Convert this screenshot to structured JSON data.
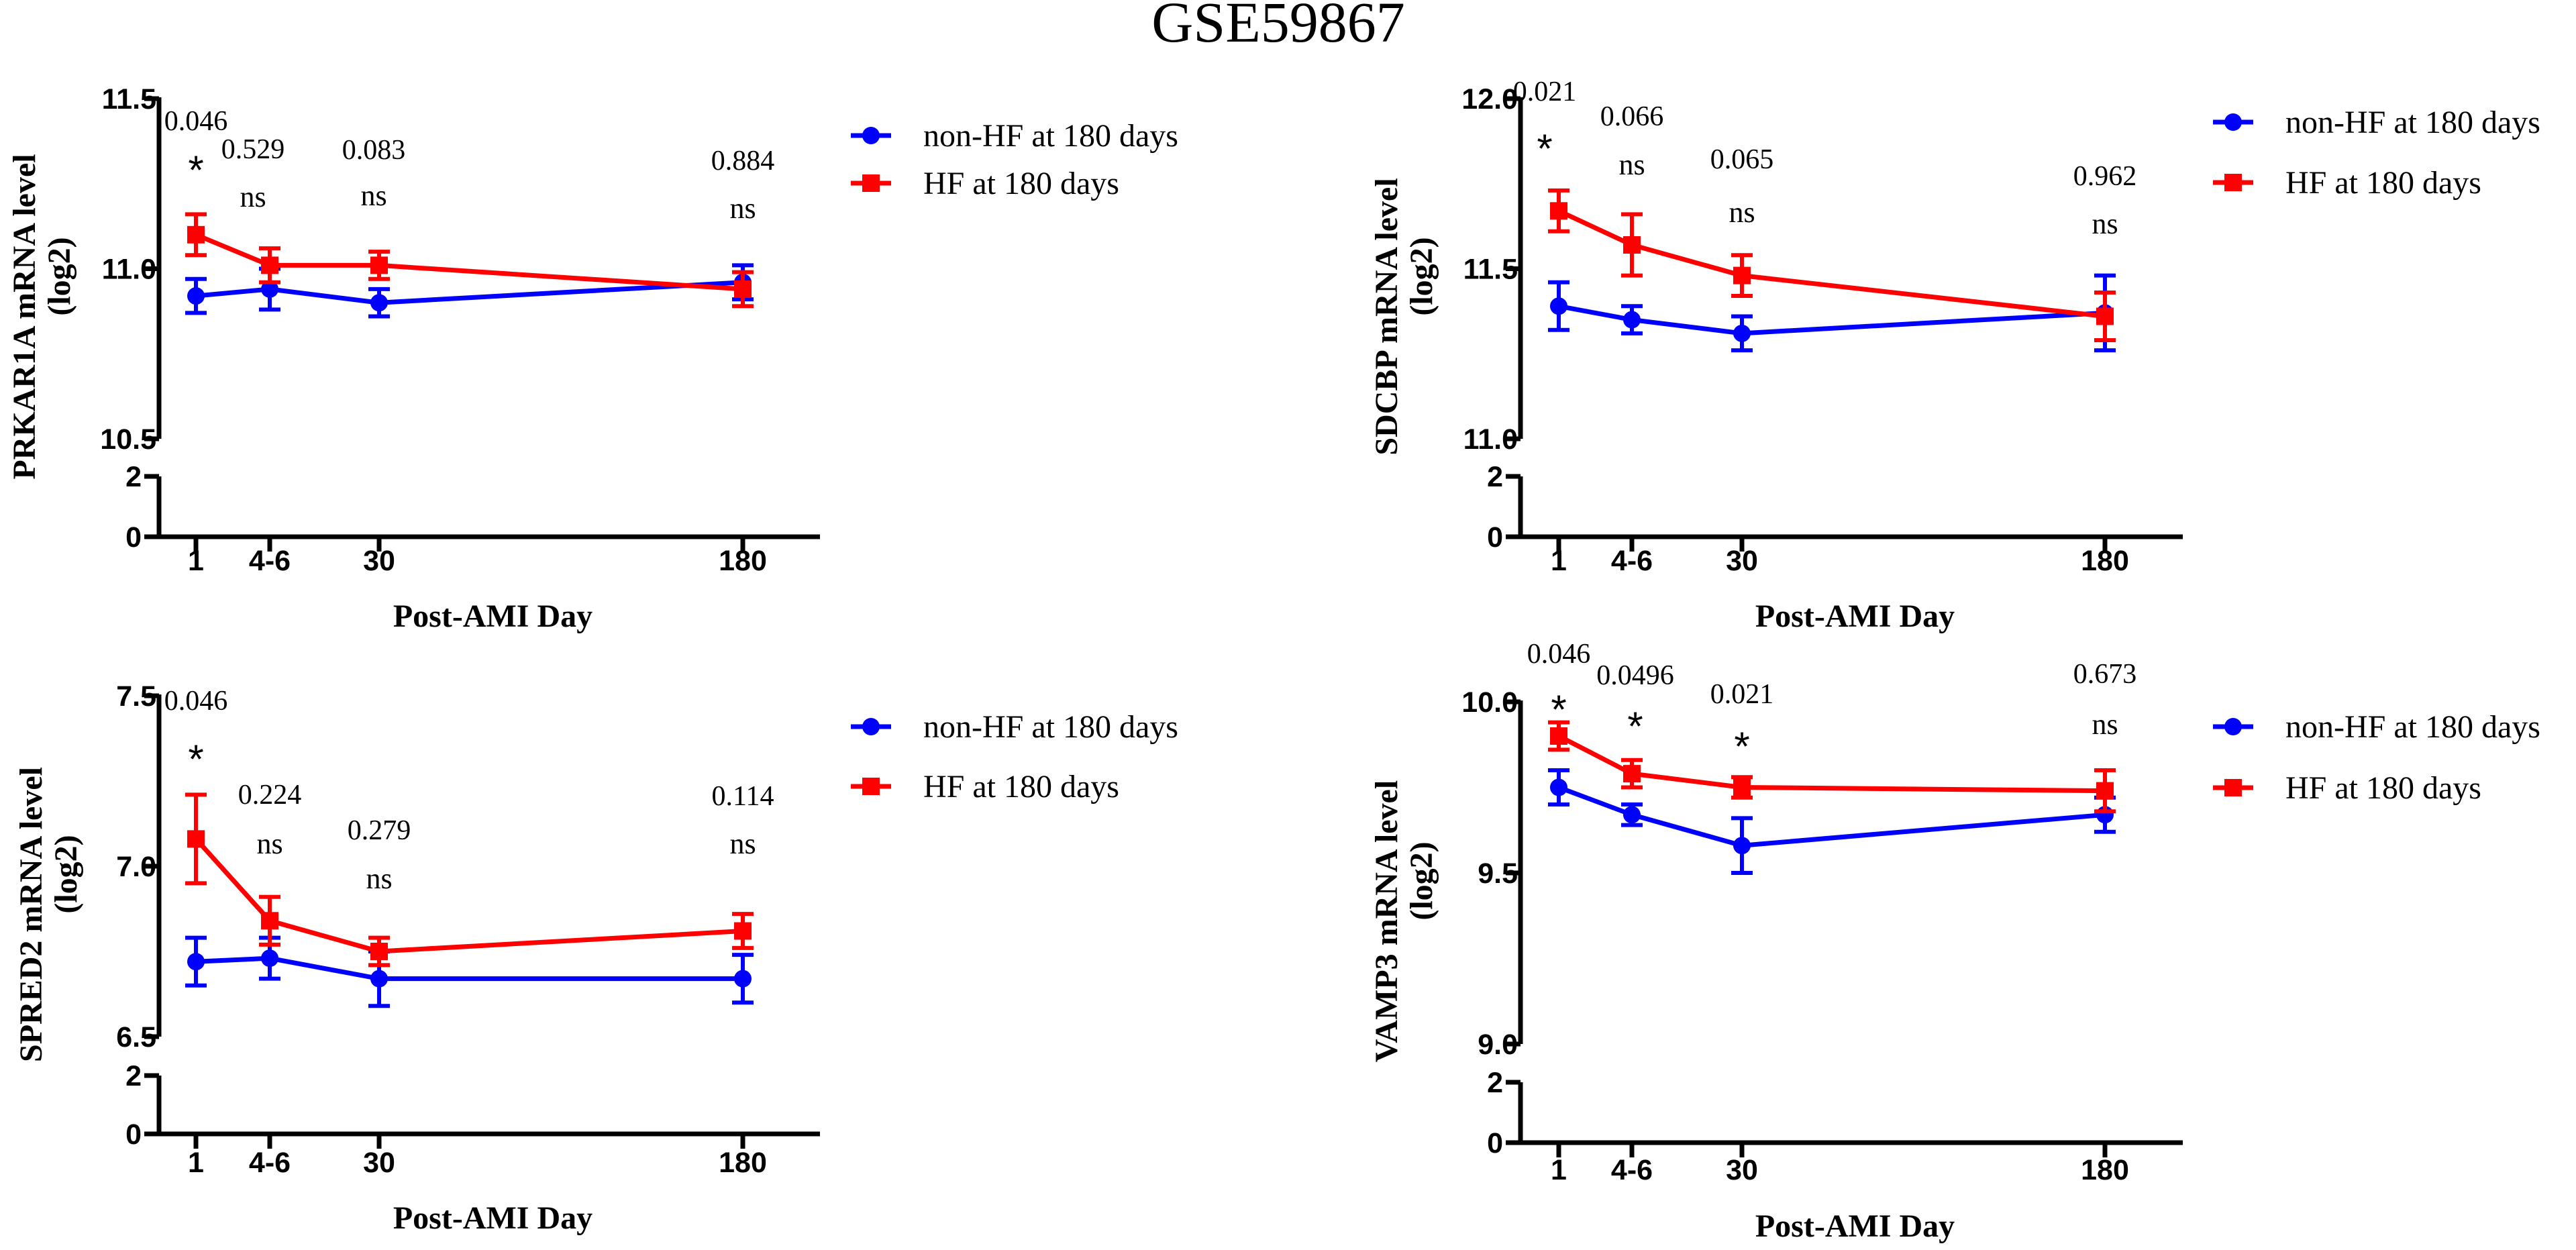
{
  "title": "GSE59867",
  "series_style": {
    "non_hf": {
      "color": "#0000ff",
      "marker": "circle"
    },
    "hf": {
      "color": "#ff0000",
      "marker": "square"
    }
  },
  "chart_data": [
    {
      "type": "line",
      "ylabel_line1": "PRKAR1A mRNA level",
      "ylabel_line2": "(log2)",
      "xlabel": "Post-AMI Day",
      "x": [
        1,
        5,
        30,
        180
      ],
      "x_tick_labels": [
        "1",
        "4-6",
        "30",
        "180"
      ],
      "ylim": [
        10.5,
        11.5
      ],
      "y_ticks": [
        "10.5",
        "11.0",
        "11.5"
      ],
      "break_ticks": [
        "0",
        "2"
      ],
      "series": [
        {
          "name": "non-HF at 180 days",
          "key": "non_hf",
          "values": [
            10.92,
            10.94,
            10.9,
            10.96
          ],
          "errors": [
            0.05,
            0.06,
            0.04,
            0.05
          ]
        },
        {
          "name": "HF at 180 days",
          "key": "hf",
          "values": [
            11.1,
            11.01,
            11.01,
            10.94
          ],
          "errors": [
            0.06,
            0.05,
            0.04,
            0.05
          ]
        }
      ],
      "annotations": [
        {
          "x": 1,
          "p": "0.046",
          "sig": "*"
        },
        {
          "x": 5,
          "p": "0.529",
          "sig": "ns"
        },
        {
          "x": 30,
          "p": "0.083",
          "sig": "ns"
        },
        {
          "x": 180,
          "p": "0.884",
          "sig": "ns"
        }
      ]
    },
    {
      "type": "line",
      "ylabel_line1": "SDCBP mRNA level",
      "ylabel_line2": "(log2)",
      "xlabel": "Post-AMI Day",
      "x": [
        1,
        5,
        30,
        180
      ],
      "x_tick_labels": [
        "1",
        "4-6",
        "30",
        "180"
      ],
      "ylim": [
        11.0,
        12.0
      ],
      "y_ticks": [
        "11.0",
        "11.5",
        "12.0"
      ],
      "break_ticks": [
        "0",
        "2"
      ],
      "series": [
        {
          "name": "non-HF at 180 days",
          "key": "non_hf",
          "values": [
            11.39,
            11.35,
            11.31,
            11.37
          ],
          "errors": [
            0.07,
            0.04,
            0.05,
            0.11
          ]
        },
        {
          "name": "HF at 180 days",
          "key": "hf",
          "values": [
            11.67,
            11.57,
            11.48,
            11.36
          ],
          "errors": [
            0.06,
            0.09,
            0.06,
            0.07
          ]
        }
      ],
      "annotations": [
        {
          "x": 1,
          "p": "0.021",
          "sig": "*"
        },
        {
          "x": 5,
          "p": "0.066",
          "sig": "ns"
        },
        {
          "x": 30,
          "p": "0.065",
          "sig": "ns"
        },
        {
          "x": 180,
          "p": "0.962",
          "sig": "ns"
        }
      ]
    },
    {
      "type": "line",
      "ylabel_line1": "SPRED2 mRNA level",
      "ylabel_line2": "(log2)",
      "xlabel": "Post-AMI Day",
      "x": [
        1,
        5,
        30,
        180
      ],
      "x_tick_labels": [
        "1",
        "4-6",
        "30",
        "180"
      ],
      "ylim": [
        6.5,
        7.5
      ],
      "y_ticks": [
        "6.5",
        "7.0",
        "7.5"
      ],
      "break_ticks": [
        "0",
        "2"
      ],
      "series": [
        {
          "name": "non-HF at 180 days",
          "key": "non_hf",
          "values": [
            6.72,
            6.73,
            6.67,
            6.67
          ],
          "errors": [
            0.07,
            0.06,
            0.08,
            0.07
          ]
        },
        {
          "name": "HF at 180 days",
          "key": "hf",
          "values": [
            7.08,
            6.84,
            6.75,
            6.81
          ],
          "errors": [
            0.13,
            0.07,
            0.04,
            0.05
          ]
        }
      ],
      "annotations": [
        {
          "x": 1,
          "p": "0.046",
          "sig": "*"
        },
        {
          "x": 5,
          "p": "0.224",
          "sig": "ns"
        },
        {
          "x": 30,
          "p": "0.279",
          "sig": "ns"
        },
        {
          "x": 180,
          "p": "0.114",
          "sig": "ns"
        }
      ]
    },
    {
      "type": "line",
      "ylabel_line1": "VAMP3 mRNA level",
      "ylabel_line2": "(log2)",
      "xlabel": "Post-AMI Day",
      "x": [
        1,
        5,
        30,
        180
      ],
      "x_tick_labels": [
        "1",
        "4-6",
        "30",
        "180"
      ],
      "ylim": [
        9.0,
        10.0
      ],
      "y_ticks": [
        "9.0",
        "9.5",
        "10.0"
      ],
      "break_ticks": [
        "0",
        "2"
      ],
      "series": [
        {
          "name": "non-HF at 180 days",
          "key": "non_hf",
          "values": [
            9.75,
            9.67,
            9.58,
            9.67
          ],
          "errors": [
            0.05,
            0.03,
            0.08,
            0.05
          ]
        },
        {
          "name": "HF at 180 days",
          "key": "hf",
          "values": [
            9.9,
            9.79,
            9.75,
            9.74
          ],
          "errors": [
            0.04,
            0.04,
            0.03,
            0.06
          ]
        }
      ],
      "annotations": [
        {
          "x": 1,
          "p": "0.046",
          "sig": "*"
        },
        {
          "x": 5,
          "p": "0.0496",
          "sig": "*"
        },
        {
          "x": 30,
          "p": "0.021",
          "sig": "*"
        },
        {
          "x": 180,
          "p": "0.673",
          "sig": "ns"
        }
      ]
    }
  ]
}
